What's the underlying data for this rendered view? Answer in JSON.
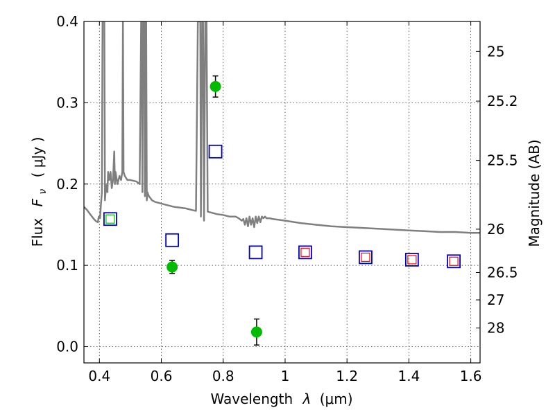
{
  "chart_data": {
    "type": "scatter",
    "xlabel": "Wavelength",
    "xlabel_symbol": "λ",
    "xlabel_unit": "(μm)",
    "ylabel": "Flux",
    "ylabel_symbol": "F",
    "ylabel_symbol_sub": "ν",
    "ylabel_unit": "( μJy )",
    "y2label": "Magnitude (AB)",
    "xlim": [
      0.35,
      1.63
    ],
    "ylim": [
      -0.02,
      0.4
    ],
    "grid": true,
    "x_ticks": [
      {
        "value": 0.4,
        "label": "0.4"
      },
      {
        "value": 0.6,
        "label": "0.6"
      },
      {
        "value": 0.8,
        "label": "0.8"
      },
      {
        "value": 1.0,
        "label": "1"
      },
      {
        "value": 1.2,
        "label": "1.2"
      },
      {
        "value": 1.4,
        "label": "1.4"
      },
      {
        "value": 1.6,
        "label": "1.6"
      }
    ],
    "y_ticks": [
      {
        "value": 0.0,
        "label": "0.0"
      },
      {
        "value": 0.1,
        "label": "0.1"
      },
      {
        "value": 0.2,
        "label": "0.2"
      },
      {
        "value": 0.3,
        "label": "0.3"
      },
      {
        "value": 0.4,
        "label": "0.4"
      }
    ],
    "y2_ticks": [
      {
        "label": "25",
        "flux": 0.3631
      },
      {
        "label": "25.2",
        "flux": 0.302
      },
      {
        "label": "25.5",
        "flux": 0.2291
      },
      {
        "label": "26",
        "flux": 0.1445
      },
      {
        "label": "26.5",
        "flux": 0.0912
      },
      {
        "label": "27",
        "flux": 0.0575
      },
      {
        "label": "28",
        "flux": 0.0229
      }
    ],
    "series": [
      {
        "name": "SED model",
        "kind": "line",
        "color": "#7f7f7f",
        "x": [
          0.35,
          0.36,
          0.37,
          0.38,
          0.39,
          0.395,
          0.398,
          0.402,
          0.405,
          0.408,
          0.41,
          0.412,
          0.416,
          0.418,
          0.42,
          0.424,
          0.426,
          0.428,
          0.432,
          0.436,
          0.44,
          0.444,
          0.448,
          0.45,
          0.452,
          0.458,
          0.465,
          0.47,
          0.474,
          0.476,
          0.478,
          0.482,
          0.49,
          0.5,
          0.51,
          0.52,
          0.53,
          0.535,
          0.537,
          0.539,
          0.541,
          0.543,
          0.545,
          0.547,
          0.549,
          0.551,
          0.553,
          0.555,
          0.56,
          0.57,
          0.58,
          0.6,
          0.62,
          0.64,
          0.66,
          0.68,
          0.7,
          0.712,
          0.718,
          0.72,
          0.722,
          0.726,
          0.728,
          0.732,
          0.735,
          0.738,
          0.742,
          0.746,
          0.75,
          0.76,
          0.78,
          0.8,
          0.82,
          0.84,
          0.85,
          0.86,
          0.865,
          0.87,
          0.875,
          0.88,
          0.885,
          0.89,
          0.895,
          0.9,
          0.905,
          0.91,
          0.915,
          0.92,
          0.925,
          0.93,
          0.935,
          0.94,
          0.95,
          0.96,
          0.98,
          1.0,
          1.05,
          1.1,
          1.15,
          1.2,
          1.25,
          1.3,
          1.35,
          1.4,
          1.45,
          1.5,
          1.55,
          1.6,
          1.63
        ],
        "y": [
          0.172,
          0.168,
          0.163,
          0.158,
          0.154,
          0.153,
          0.16,
          0.158,
          0.175,
          0.19,
          0.4,
          0.4,
          0.4,
          0.18,
          0.19,
          0.2,
          0.19,
          0.215,
          0.205,
          0.215,
          0.195,
          0.205,
          0.24,
          0.2,
          0.215,
          0.2,
          0.21,
          0.205,
          0.215,
          0.4,
          0.215,
          0.21,
          0.205,
          0.205,
          0.204,
          0.203,
          0.2,
          0.4,
          0.4,
          0.19,
          0.4,
          0.4,
          0.4,
          0.185,
          0.4,
          0.4,
          0.18,
          0.19,
          0.185,
          0.18,
          0.178,
          0.176,
          0.174,
          0.172,
          0.171,
          0.17,
          0.168,
          0.167,
          0.4,
          0.4,
          0.4,
          0.4,
          0.16,
          0.4,
          0.4,
          0.155,
          0.4,
          0.4,
          0.166,
          0.165,
          0.163,
          0.162,
          0.16,
          0.16,
          0.158,
          0.155,
          0.157,
          0.15,
          0.158,
          0.148,
          0.16,
          0.15,
          0.158,
          0.147,
          0.16,
          0.152,
          0.16,
          0.153,
          0.16,
          0.158,
          0.16,
          0.158,
          0.158,
          0.157,
          0.156,
          0.155,
          0.152,
          0.15,
          0.148,
          0.147,
          0.146,
          0.145,
          0.144,
          0.143,
          0.142,
          0.141,
          0.141,
          0.14,
          0.14
        ]
      },
      {
        "name": "Model photometry (blue squares)",
        "kind": "open-square",
        "color": "#0000cc",
        "x": [
          0.435,
          0.635,
          0.775,
          0.905,
          1.065,
          1.26,
          1.41,
          1.545
        ],
        "y": [
          0.157,
          0.131,
          0.24,
          0.116,
          0.116,
          0.11,
          0.107,
          0.105
        ]
      },
      {
        "name": "Red squares",
        "kind": "open-square-small",
        "color": "#ff0000",
        "x": [
          1.065,
          1.26,
          1.41,
          1.545
        ],
        "y": [
          0.116,
          0.11,
          0.107,
          0.105
        ]
      },
      {
        "name": "Green square",
        "kind": "open-square-small",
        "color": "#00bb00",
        "x": [
          0.435
        ],
        "y": [
          0.157
        ]
      },
      {
        "name": "Observed photometry",
        "kind": "filled-circle",
        "color": "#00bb00",
        "x": [
          0.635,
          0.775,
          0.908
        ],
        "y": [
          0.098,
          0.32,
          0.018
        ],
        "yerr": [
          0.008,
          0.013,
          0.016
        ]
      }
    ]
  }
}
